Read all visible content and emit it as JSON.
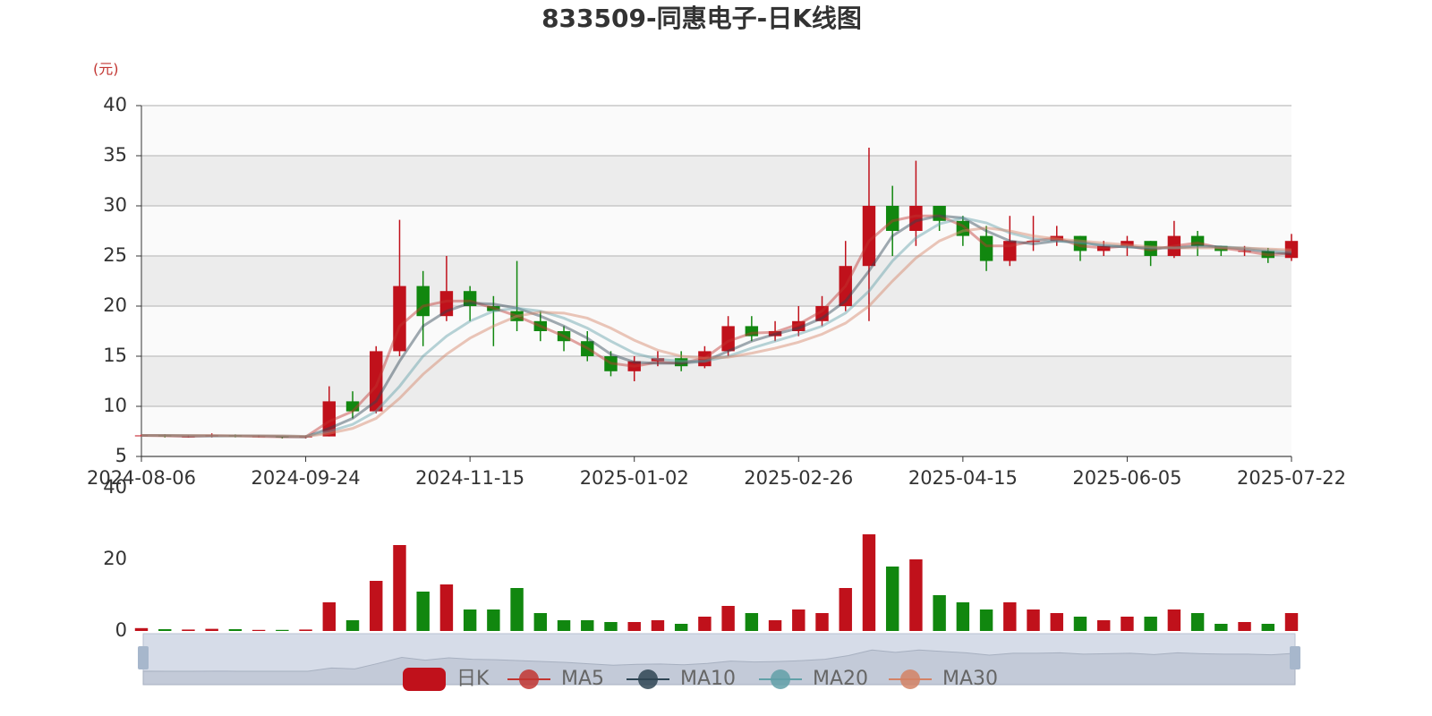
{
  "chart_data": {
    "type": "candlestick",
    "title": "833509-同惠电子-日K线图",
    "y_unit": "(元)",
    "candle_name": "日K",
    "up_color": "#c0111b",
    "down_color": "#11870f",
    "categories": [
      "2024-08-06",
      null,
      null,
      null,
      null,
      null,
      null,
      "2024-09-24",
      null,
      null,
      null,
      null,
      null,
      null,
      "2024-11-15",
      null,
      null,
      null,
      null,
      null,
      null,
      "2025-01-02",
      null,
      null,
      null,
      null,
      null,
      null,
      "2025-02-26",
      null,
      null,
      null,
      null,
      null,
      null,
      "2025-04-15",
      null,
      null,
      null,
      null,
      null,
      null,
      "2025-06-05",
      null,
      null,
      null,
      null,
      null,
      null,
      "2025-07-22"
    ],
    "values": [
      [
        7.1,
        7.1,
        7.0,
        7.2
      ],
      [
        7.1,
        7.0,
        6.9,
        7.2
      ],
      [
        7.0,
        7.0,
        6.9,
        7.1
      ],
      [
        7.0,
        7.1,
        6.9,
        7.3
      ],
      [
        7.1,
        7.0,
        6.9,
        7.2
      ],
      [
        7.0,
        7.0,
        6.9,
        7.1
      ],
      [
        7.0,
        6.9,
        6.8,
        7.0
      ],
      [
        6.9,
        7.0,
        6.8,
        7.1
      ],
      [
        7.0,
        10.5,
        7.0,
        12.0
      ],
      [
        10.5,
        9.5,
        8.8,
        11.5
      ],
      [
        9.5,
        15.5,
        9.3,
        16.0
      ],
      [
        15.5,
        22.0,
        15.0,
        28.6
      ],
      [
        22.0,
        19.0,
        16.0,
        23.5
      ],
      [
        19.0,
        21.5,
        18.5,
        25.0
      ],
      [
        21.5,
        20.0,
        18.5,
        22.0
      ],
      [
        20.0,
        19.5,
        16.0,
        21.0
      ],
      [
        19.5,
        18.5,
        17.5,
        24.5
      ],
      [
        18.5,
        17.5,
        16.5,
        19.5
      ],
      [
        17.5,
        16.5,
        15.5,
        18.0
      ],
      [
        16.5,
        15.0,
        14.5,
        17.5
      ],
      [
        15.0,
        13.5,
        13.0,
        15.5
      ],
      [
        13.5,
        14.5,
        12.5,
        15.0
      ],
      [
        14.5,
        14.8,
        14.0,
        15.5
      ],
      [
        14.8,
        14.0,
        13.5,
        15.5
      ],
      [
        14.0,
        15.5,
        13.8,
        16.0
      ],
      [
        15.5,
        18.0,
        15.0,
        19.0
      ],
      [
        18.0,
        17.0,
        16.5,
        19.0
      ],
      [
        17.0,
        17.5,
        16.5,
        18.5
      ],
      [
        17.5,
        18.5,
        17.0,
        20.0
      ],
      [
        18.5,
        20.0,
        18.0,
        21.0
      ],
      [
        20.0,
        24.0,
        19.5,
        26.5
      ],
      [
        24.0,
        30.0,
        18.5,
        35.8
      ],
      [
        30.0,
        27.5,
        25.0,
        32.0
      ],
      [
        27.5,
        30.0,
        26.0,
        34.5
      ],
      [
        30.0,
        28.5,
        27.5,
        30.0
      ],
      [
        28.5,
        27.0,
        26.0,
        29.0
      ],
      [
        27.0,
        24.5,
        23.5,
        28.0
      ],
      [
        24.5,
        26.5,
        24.0,
        29.0
      ],
      [
        26.5,
        26.5,
        25.5,
        29.0
      ],
      [
        26.5,
        27.0,
        26.0,
        28.0
      ],
      [
        27.0,
        25.5,
        24.5,
        27.0
      ],
      [
        25.5,
        26.0,
        25.0,
        26.5
      ],
      [
        26.0,
        26.5,
        25.0,
        27.0
      ],
      [
        26.5,
        25.0,
        24.0,
        26.5
      ],
      [
        25.0,
        27.0,
        24.8,
        28.5
      ],
      [
        27.0,
        26.0,
        25.0,
        27.5
      ],
      [
        26.0,
        25.5,
        25.0,
        26.0
      ],
      [
        25.5,
        25.5,
        25.0,
        26.0
      ],
      [
        25.5,
        24.8,
        24.3,
        25.8
      ],
      [
        24.8,
        26.5,
        24.5,
        27.2
      ]
    ],
    "ylim": [
      5,
      40
    ],
    "yticks": [
      5,
      10,
      15,
      20,
      25,
      30,
      35,
      40
    ],
    "series": [
      {
        "name": "MA5",
        "color": "#c23531",
        "values": [
          7.1,
          7.05,
          7.0,
          7.05,
          7.05,
          7.0,
          6.95,
          6.95,
          8.5,
          9.5,
          12,
          18,
          20,
          20.5,
          20.5,
          19.8,
          19,
          18,
          17,
          15.8,
          14.3,
          14,
          14.4,
          14.3,
          14.8,
          16.5,
          17.3,
          17.4,
          18.2,
          19.5,
          22,
          26.5,
          28.5,
          29,
          29,
          28,
          26,
          26,
          26.5,
          26.8,
          26,
          25.8,
          26,
          25.6,
          26,
          26.3,
          25.8,
          25.5,
          25.1,
          25.3
        ]
      },
      {
        "name": "MA10",
        "color": "#2f4554",
        "values": [
          7.1,
          7.1,
          7.05,
          7.05,
          7.05,
          7.05,
          7.0,
          6.95,
          7.8,
          8.8,
          10.5,
          14.5,
          18,
          19.5,
          20.3,
          20.2,
          19.8,
          19,
          18,
          16.8,
          15.2,
          14.4,
          14.3,
          14.3,
          14.5,
          15.5,
          16.5,
          17.2,
          17.8,
          18.8,
          20.5,
          23.5,
          27,
          28.5,
          29,
          28.8,
          27.5,
          26.5,
          26.2,
          26.5,
          26.4,
          26,
          25.9,
          25.8,
          25.8,
          26,
          25.9,
          25.7,
          25.4,
          25.2
        ]
      },
      {
        "name": "MA20",
        "color": "#61a0a8",
        "values": [
          7.1,
          7.1,
          7.1,
          7.05,
          7.05,
          7.05,
          7.05,
          7.0,
          7.5,
          8.2,
          9.5,
          12,
          15,
          17,
          18.5,
          19.5,
          19.8,
          19.5,
          18.8,
          17.8,
          16.5,
          15.3,
          14.7,
          14.5,
          14.5,
          15,
          15.8,
          16.5,
          17.2,
          18,
          19.3,
          21.5,
          24.5,
          26.8,
          28.2,
          28.8,
          28.3,
          27.3,
          26.7,
          26.5,
          26.3,
          26.1,
          25.9,
          25.8,
          25.8,
          25.9,
          25.9,
          25.8,
          25.6,
          25.4
        ]
      },
      {
        "name": "MA30",
        "color": "#d48265",
        "values": [
          7.1,
          7.1,
          7.1,
          7.1,
          7.05,
          7.05,
          7.05,
          7.0,
          7.3,
          7.8,
          8.8,
          10.8,
          13.2,
          15.2,
          16.8,
          18,
          19,
          19.4,
          19.3,
          18.8,
          17.8,
          16.6,
          15.6,
          15,
          14.8,
          14.9,
          15.3,
          15.8,
          16.4,
          17.2,
          18.3,
          20,
          22.5,
          24.8,
          26.5,
          27.5,
          27.8,
          27.5,
          27,
          26.7,
          26.5,
          26.3,
          26.1,
          25.9,
          25.8,
          25.8,
          25.8,
          25.8,
          25.7,
          25.6
        ]
      }
    ],
    "volume": {
      "values": [
        0.8,
        0.5,
        0.4,
        0.6,
        0.5,
        0.3,
        0.3,
        0.4,
        8,
        3,
        14,
        24,
        11,
        13,
        6,
        6,
        12,
        5,
        3,
        3,
        2.5,
        2.5,
        3,
        2,
        4,
        7,
        5,
        3,
        6,
        5,
        12,
        27,
        18,
        20,
        10,
        8,
        6,
        8,
        6,
        5,
        4,
        3,
        4,
        4,
        6,
        5,
        2,
        2.5,
        2,
        5
      ],
      "ylim": [
        0,
        40
      ],
      "yticks": [
        0,
        20,
        40
      ]
    }
  }
}
